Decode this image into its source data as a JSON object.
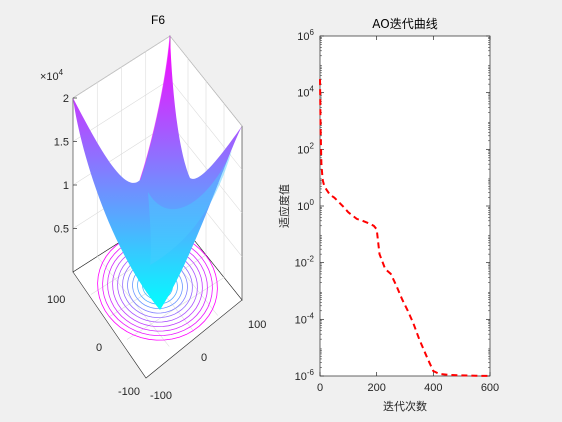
{
  "chart_data": [
    {
      "type": "surface3d",
      "title": "F6",
      "colormap": "cool",
      "z_exponent_label": "×10",
      "z_exponent_power": "4",
      "z_ticks": [
        "0.5",
        "1",
        "1.5",
        "2"
      ],
      "x_ticks": [
        "-100",
        "0",
        "100"
      ],
      "y_ticks": [
        "-100",
        "0",
        "100"
      ],
      "xlim": [
        -100,
        100
      ],
      "ylim": [
        -100,
        100
      ],
      "zlim": [
        0,
        20000
      ],
      "contour_on_floor": true,
      "grid": true
    },
    {
      "type": "line",
      "title": "AO迭代曲线",
      "xlabel": "迭代次数",
      "ylabel": "适应度值",
      "yscale": "log",
      "xlim": [
        0,
        600
      ],
      "ylim": [
        1e-06,
        1000000.0
      ],
      "x_ticks": [
        "0",
        "200",
        "400",
        "600"
      ],
      "y_tick_base": "10",
      "y_tick_exponents": [
        "-6",
        "-4",
        "-2",
        "0",
        "2",
        "4",
        "6"
      ],
      "line_color": "#ff0000",
      "line_style": "dashed",
      "series": [
        {
          "x": [
            0,
            2,
            5,
            8,
            10,
            15,
            25,
            35,
            50,
            80,
            100,
            130,
            150,
            170,
            190,
            200,
            210,
            230,
            250,
            270,
            290,
            310,
            330,
            350,
            380,
            400,
            420,
            450,
            500,
            550,
            600
          ],
          "y": [
            30000,
            500,
            30,
            12,
            8,
            5,
            3.5,
            2.5,
            2,
            1,
            0.6,
            0.35,
            0.3,
            0.25,
            0.2,
            0.15,
            0.02,
            0.006,
            0.004,
            0.0015,
            0.0005,
            0.0002,
            7e-05,
            2e-05,
            4e-06,
            1.5e-06,
            1.2e-06,
            1.1e-06,
            1.05e-06,
            1.02e-06,
            1.01e-06
          ]
        }
      ]
    }
  ]
}
